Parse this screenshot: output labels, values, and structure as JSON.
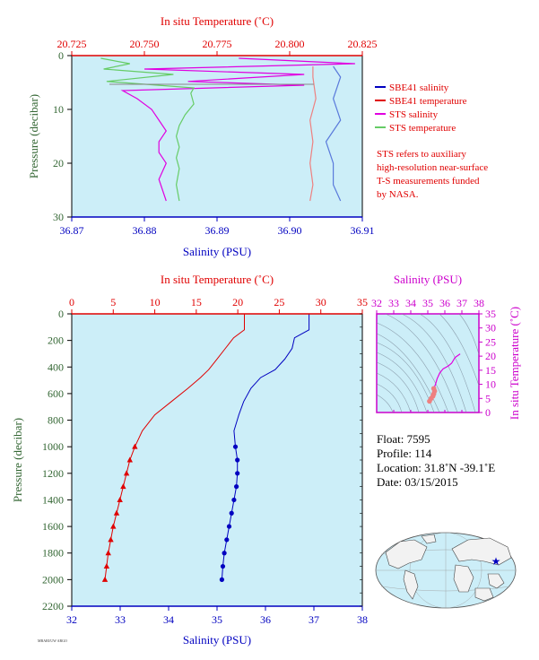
{
  "colors": {
    "plot_bg": "#cceef8",
    "temperature": "#e00000",
    "salinity": "#0000c0",
    "sts_salinity": "#e000e0",
    "sts_temperature": "#66cc66",
    "pressure_label": "#336633",
    "sbe41_salinity_light": "#5a7adb",
    "sbe41_temperature_light": "#ee8080"
  },
  "top_panel": {
    "temp_axis_title": "In situ Temperature (˚C)",
    "temp_ticks": [
      "20.725",
      "20.750",
      "20.775",
      "20.800",
      "20.825"
    ],
    "sal_axis_title": "Salinity (PSU)",
    "sal_ticks": [
      "36.87",
      "36.88",
      "36.89",
      "36.90",
      "36.91"
    ],
    "pressure_title": "Pressure (decibar)",
    "pressure_ticks": [
      "0",
      "10",
      "20",
      "30"
    ],
    "legend": [
      {
        "label": "SBE41 salinity",
        "color": "#0000c0"
      },
      {
        "label": "SBE41 temperature",
        "color": "#e00000"
      },
      {
        "label": "STS salinity",
        "color": "#e000e0"
      },
      {
        "label": "STS temperature",
        "color": "#66cc66"
      }
    ],
    "note": [
      "STS refers to auxiliary",
      "high-resolution near-surface",
      "T-S measurements funded",
      "by NASA."
    ]
  },
  "bottom_panel": {
    "temp_axis_title": "In situ Temperature (˚C)",
    "temp_ticks": [
      "0",
      "5",
      "10",
      "15",
      "20",
      "25",
      "30",
      "35"
    ],
    "sal_axis_title": "Salinity (PSU)",
    "sal_ticks": [
      "32",
      "33",
      "34",
      "35",
      "36",
      "37",
      "38"
    ],
    "pressure_title": "Pressure (decibar)",
    "pressure_ticks": [
      "0",
      "200",
      "400",
      "600",
      "800",
      "1000",
      "1200",
      "1400",
      "1600",
      "1800",
      "2000",
      "2200"
    ]
  },
  "ts_panel": {
    "sal_axis_title": "Salinity (PSU)",
    "sal_ticks": [
      "32",
      "33",
      "34",
      "35",
      "36",
      "37",
      "38"
    ],
    "temp_axis_title": "In situ Temperature (˚C)",
    "temp_ticks": [
      "0",
      "5",
      "10",
      "15",
      "20",
      "25",
      "30",
      "35"
    ]
  },
  "info": {
    "float": "Float:  7595",
    "profile": "Profile:  114",
    "location": "Location:  31.8˚N  -39.1˚E",
    "date": "Date:  03/15/2015"
  },
  "chart_data": [
    {
      "type": "line",
      "name": "near-surface profile",
      "ylabel": "Pressure (decibar)",
      "ylim": [
        30,
        0
      ],
      "x_top_label": "In situ Temperature (˚C)",
      "x_top_lim": [
        20.725,
        20.825
      ],
      "x_bottom_label": "Salinity (PSU)",
      "x_bottom_lim": [
        36.87,
        36.91
      ],
      "series": [
        {
          "name": "SBE41 salinity",
          "axis": "salinity",
          "x": [
            36.906,
            36.907,
            36.906,
            36.907,
            36.905,
            36.906,
            36.906,
            36.907
          ],
          "pressure": [
            2,
            4,
            8,
            12,
            16,
            20,
            24,
            27
          ]
        },
        {
          "name": "SBE41 temperature",
          "axis": "temperature",
          "x": [
            20.808,
            20.808,
            20.809,
            20.807,
            20.808,
            20.807,
            20.808,
            20.807
          ],
          "pressure": [
            2,
            4,
            8,
            12,
            16,
            20,
            24,
            27
          ]
        },
        {
          "name": "STS salinity",
          "axis": "salinity",
          "x": [
            36.893,
            36.909,
            36.88,
            36.902,
            36.886,
            36.902,
            36.877,
            36.879,
            36.881,
            36.882,
            36.883,
            36.882,
            36.882,
            36.883,
            36.882,
            36.883
          ],
          "pressure": [
            0.5,
            1.5,
            2.5,
            3.5,
            4.8,
            5.5,
            6.5,
            8,
            10,
            12,
            14,
            16,
            18,
            20,
            23,
            27
          ]
        },
        {
          "name": "STS temperature",
          "axis": "temperature",
          "x": [
            20.735,
            20.745,
            20.736,
            20.76,
            20.737,
            20.767,
            20.766,
            20.767,
            20.764,
            20.762,
            20.761,
            20.762,
            20.761,
            20.762,
            20.761,
            20.762
          ],
          "pressure": [
            0.5,
            1.5,
            2.5,
            3.5,
            4.8,
            6,
            7,
            9,
            11,
            13,
            15,
            17,
            19,
            21,
            24,
            27
          ]
        }
      ]
    },
    {
      "type": "line",
      "name": "full-depth profile",
      "ylabel": "Pressure (decibar)",
      "ylim": [
        2200,
        0
      ],
      "x_top_label": "In situ Temperature (˚C)",
      "x_top_lim": [
        0,
        35
      ],
      "x_bottom_label": "Salinity (PSU)",
      "x_bottom_lim": [
        32,
        38
      ],
      "series": [
        {
          "name": "temperature",
          "axis": "temperature",
          "x": [
            20.8,
            20.8,
            19.5,
            18.5,
            17.5,
            16.5,
            15.5,
            14.0,
            12.0,
            10.0,
            8.5,
            7.6,
            7.0,
            6.6,
            6.2,
            5.8,
            5.4,
            5.0,
            4.7,
            4.4,
            4.2,
            4.0
          ],
          "pressure": [
            0,
            120,
            180,
            260,
            340,
            420,
            480,
            560,
            660,
            760,
            880,
            1000,
            1100,
            1200,
            1300,
            1400,
            1500,
            1600,
            1700,
            1800,
            1900,
            2000
          ]
        },
        {
          "name": "salinity",
          "axis": "salinity",
          "x": [
            36.9,
            36.9,
            36.6,
            36.55,
            36.4,
            36.2,
            35.9,
            35.7,
            35.55,
            35.45,
            35.35,
            35.38,
            35.42,
            35.42,
            35.4,
            35.35,
            35.3,
            35.25,
            35.2,
            35.15,
            35.12,
            35.1
          ],
          "pressure": [
            0,
            120,
            180,
            260,
            340,
            420,
            480,
            560,
            660,
            760,
            880,
            1000,
            1100,
            1200,
            1300,
            1400,
            1500,
            1600,
            1700,
            1800,
            1900,
            2000
          ]
        }
      ]
    },
    {
      "type": "scatter",
      "name": "T-S diagram",
      "xlabel": "Salinity (PSU)",
      "ylabel": "In situ Temperature (˚C)",
      "xlim": [
        32,
        38
      ],
      "ylim": [
        0,
        35
      ],
      "points": {
        "salinity": [
          36.9,
          36.6,
          36.4,
          36.2,
          35.9,
          35.7,
          35.55,
          35.45,
          35.35,
          35.4,
          35.35,
          35.3,
          35.2,
          35.1
        ],
        "temperature": [
          20.8,
          19.5,
          17.5,
          16.5,
          15.5,
          14.0,
          12.0,
          10.0,
          8.5,
          7.6,
          6.6,
          5.8,
          5.0,
          4.0
        ]
      }
    }
  ]
}
